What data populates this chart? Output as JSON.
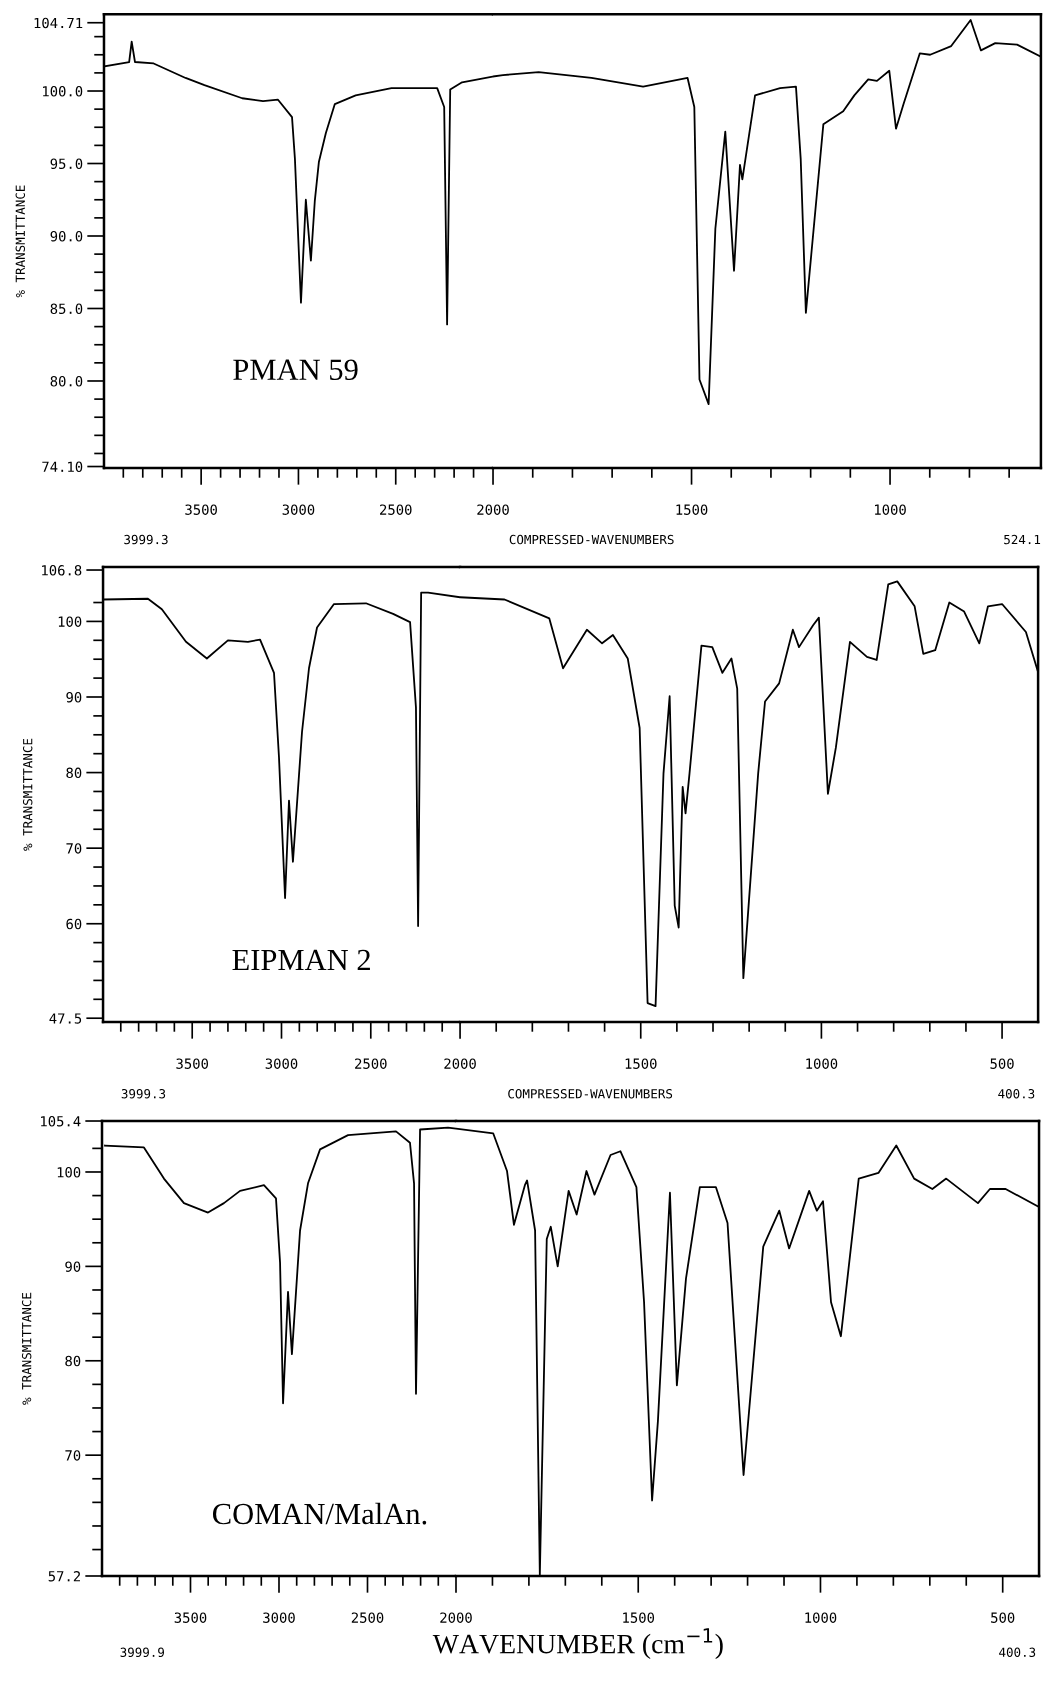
{
  "chart_data": [
    {
      "type": "line",
      "ylabel": "% TRANSMITTANCE",
      "annotations": [
        "PMAN 59",
        "3999.3"
      ],
      "xlim": [
        3999.3,
        2000
      ],
      "ylim": [
        74.0,
        105.3
      ],
      "xticks": [
        {
          "value": 3900,
          "label": null
        },
        {
          "value": 3800,
          "label": null
        },
        {
          "value": 3700,
          "label": null
        },
        {
          "value": 3600,
          "label": null
        },
        3500,
        {
          "value": 3400,
          "label": null
        },
        {
          "value": 3300,
          "label": null
        },
        {
          "value": 3200,
          "label": null
        },
        {
          "value": 3100,
          "label": null
        },
        3000,
        {
          "value": 2900,
          "label": null
        },
        {
          "value": 2800,
          "label": null
        },
        {
          "value": 2700,
          "label": null
        },
        {
          "value": 2600,
          "label": null
        },
        2500,
        {
          "value": 2400,
          "label": null
        },
        {
          "value": 2300,
          "label": null
        },
        {
          "value": 2200,
          "label": null
        },
        {
          "value": 2100,
          "label": null
        },
        2000
      ],
      "yticks": [
        {
          "value": 104.71,
          "label": "104.71"
        },
        {
          "value": 103.75,
          "label": null
        },
        {
          "value": 102.5,
          "label": null
        },
        {
          "value": 101.25,
          "label": null
        },
        {
          "value": 100,
          "label": "100.0"
        },
        {
          "value": 98.75,
          "label": null
        },
        {
          "value": 97.5,
          "label": null
        },
        {
          "value": 96.25,
          "label": null
        },
        {
          "value": 95,
          "label": "95.0"
        },
        {
          "value": 93.75,
          "label": null
        },
        {
          "value": 92.5,
          "label": null
        },
        {
          "value": 91.25,
          "label": null
        },
        {
          "value": 90,
          "label": "90.0"
        },
        {
          "value": 88.75,
          "label": null
        },
        {
          "value": 87.5,
          "label": null
        },
        {
          "value": 86.25,
          "label": null
        },
        {
          "value": 85,
          "label": "85.0"
        },
        {
          "value": 83.75,
          "label": null
        },
        {
          "value": 82.5,
          "label": null
        },
        {
          "value": 81.25,
          "label": null
        },
        {
          "value": 80,
          "label": "80.0"
        },
        {
          "value": 78.75,
          "label": null
        },
        {
          "value": 77.5,
          "label": null
        },
        {
          "value": 76.25,
          "label": null
        },
        {
          "value": 75,
          "label": null
        },
        {
          "value": 74.1,
          "label": "74.10"
        }
      ],
      "series": [
        {
          "color": "#000000",
          "x": [
            3999,
            3870,
            3857,
            3840,
            3744,
            3580,
            3483,
            3289,
            3182,
            3105,
            3033,
            3018,
            2987,
            2962,
            2936,
            2916,
            2895,
            2859,
            2813,
            2706,
            2522,
            2287,
            2251,
            2236,
            2220,
            2159,
            2000
          ],
          "values": [
            101.7,
            102.0,
            103.4,
            102.0,
            101.9,
            100.9,
            100.4,
            99.5,
            99.3,
            99.4,
            98.2,
            95.3,
            85.4,
            92.5,
            88.3,
            92.4,
            95.1,
            97.1,
            99.1,
            99.7,
            100.2,
            100.2,
            98.9,
            83.9,
            100.1,
            100.6,
            101.0
          ]
        }
      ]
    },
    {
      "type": "line",
      "tick_labels": "x",
      "annotations": [
        "COMPRESSED-WAVENUMBERS",
        "524.1"
      ],
      "xlim": [
        2000,
        620
      ],
      "ylim": [
        74.0,
        105.3
      ],
      "xticks": [
        {
          "value": 1900,
          "label": null
        },
        {
          "value": 1800,
          "label": null
        },
        {
          "value": 1700,
          "label": null
        },
        {
          "value": 1600,
          "label": null
        },
        1500,
        {
          "value": 1400,
          "label": null
        },
        {
          "value": 1300,
          "label": null
        },
        {
          "value": 1200,
          "label": null
        },
        {
          "value": 1100,
          "label": null
        },
        1000,
        {
          "value": 900,
          "label": null
        },
        {
          "value": 800,
          "label": null
        },
        {
          "value": 700,
          "label": null
        }
      ],
      "series": [
        {
          "color": "#000000",
          "x": [
            2000,
            1975,
            1885,
            1752,
            1622,
            1510,
            1493,
            1480,
            1457,
            1440,
            1415,
            1393,
            1378,
            1372,
            1340,
            1277,
            1237,
            1225,
            1212,
            1168,
            1118,
            1090,
            1055,
            1033,
            1002,
            985,
            966,
            925,
            899,
            846,
            797,
            771,
            735,
            680,
            622
          ],
          "values": [
            101.0,
            101.1,
            101.3,
            100.9,
            100.3,
            100.9,
            98.9,
            80.1,
            78.4,
            90.5,
            97.2,
            87.6,
            94.9,
            93.9,
            99.7,
            100.2,
            100.3,
            95.3,
            84.7,
            97.7,
            98.6,
            99.7,
            100.8,
            100.7,
            101.4,
            97.4,
            99.1,
            102.6,
            102.5,
            103.1,
            104.9,
            102.8,
            103.3,
            103.2,
            102.4
          ]
        }
      ]
    },
    {
      "type": "line",
      "ylabel": "% TRANSMITTANCE",
      "annotations": [
        "EIPMAN 2",
        "3999.3"
      ],
      "xlim": [
        3999.3,
        2000
      ],
      "ylim": [
        47.0,
        107.2
      ],
      "xticks": [
        {
          "value": 3900,
          "label": null
        },
        {
          "value": 3800,
          "label": null
        },
        {
          "value": 3700,
          "label": null
        },
        {
          "value": 3600,
          "label": null
        },
        3500,
        {
          "value": 3400,
          "label": null
        },
        {
          "value": 3300,
          "label": null
        },
        {
          "value": 3200,
          "label": null
        },
        {
          "value": 3100,
          "label": null
        },
        3000,
        {
          "value": 2900,
          "label": null
        },
        {
          "value": 2800,
          "label": null
        },
        {
          "value": 2700,
          "label": null
        },
        {
          "value": 2600,
          "label": null
        },
        2500,
        {
          "value": 2400,
          "label": null
        },
        {
          "value": 2300,
          "label": null
        },
        {
          "value": 2200,
          "label": null
        },
        {
          "value": 2100,
          "label": null
        },
        2000
      ],
      "yticks": [
        {
          "value": 106.8,
          "label": "106.8"
        },
        {
          "value": 102.5,
          "label": null
        },
        100,
        {
          "value": 97.5,
          "label": null
        },
        {
          "value": 95,
          "label": null
        },
        {
          "value": 92.5,
          "label": null
        },
        90,
        {
          "value": 87.5,
          "label": null
        },
        {
          "value": 85,
          "label": null
        },
        {
          "value": 82.5,
          "label": null
        },
        80,
        {
          "value": 77.5,
          "label": null
        },
        {
          "value": 75,
          "label": null
        },
        {
          "value": 72.5,
          "label": null
        },
        70,
        {
          "value": 67.5,
          "label": null
        },
        {
          "value": 65,
          "label": null
        },
        {
          "value": 62.5,
          "label": null
        },
        60,
        {
          "value": 57.5,
          "label": null
        },
        {
          "value": 55,
          "label": null
        },
        {
          "value": 52.5,
          "label": null
        },
        {
          "value": 50,
          "label": null
        },
        47.5
      ],
      "series": [
        {
          "color": "#000000",
          "x": [
            3999,
            3748,
            3670,
            3535,
            3418,
            3300,
            3188,
            3120,
            3042,
            3014,
            2980,
            2958,
            2936,
            2885,
            2846,
            2801,
            2706,
            2527,
            2375,
            2280,
            2247,
            2235,
            2218,
            2179,
            2000
          ],
          "values": [
            102.9,
            103.0,
            101.6,
            97.3,
            95.1,
            97.5,
            97.3,
            97.6,
            93.2,
            82.0,
            63.4,
            76.3,
            68.2,
            85.4,
            93.8,
            99.2,
            102.3,
            102.4,
            101.0,
            99.9,
            88.6,
            59.7,
            103.8,
            103.8,
            103.2
          ]
        }
      ]
    },
    {
      "type": "line",
      "tick_labels": "x",
      "annotations": [
        "COMPRESSED-WAVENUMBERS",
        "400.3"
      ],
      "xlim": [
        2000,
        400.3
      ],
      "ylim": [
        47.0,
        107.2
      ],
      "xticks": [
        {
          "value": 1900,
          "label": null
        },
        {
          "value": 1800,
          "label": null
        },
        {
          "value": 1700,
          "label": null
        },
        {
          "value": 1600,
          "label": null
        },
        1500,
        {
          "value": 1400,
          "label": null
        },
        {
          "value": 1300,
          "label": null
        },
        {
          "value": 1200,
          "label": null
        },
        {
          "value": 1100,
          "label": null
        },
        1000,
        {
          "value": 900,
          "label": null
        },
        {
          "value": 800,
          "label": null
        },
        {
          "value": 700,
          "label": null
        },
        {
          "value": 600,
          "label": null
        },
        500
      ],
      "series": [
        {
          "color": "#000000",
          "x": [
            2000,
            1877,
            1753,
            1715,
            1649,
            1607,
            1577,
            1536,
            1503,
            1481,
            1459,
            1437,
            1420,
            1406,
            1395,
            1384,
            1376,
            1365,
            1332,
            1302,
            1274,
            1249,
            1233,
            1216,
            1175,
            1156,
            1117,
            1079,
            1062,
            1023,
            1007,
            982,
            960,
            921,
            874,
            847,
            815,
            790,
            742,
            718,
            685,
            646,
            605,
            563,
            539,
            500,
            434,
            401
          ],
          "values": [
            103.2,
            102.9,
            100.4,
            93.8,
            98.9,
            97.1,
            98.2,
            95.1,
            85.9,
            49.5,
            49.1,
            79.9,
            90.1,
            62.4,
            59.5,
            78.1,
            74.6,
            79.9,
            96.8,
            96.6,
            93.2,
            95.1,
            91.1,
            52.8,
            79.9,
            89.4,
            91.8,
            98.9,
            96.6,
            99.5,
            100.5,
            77.2,
            83.3,
            97.3,
            95.3,
            94.9,
            104.9,
            105.3,
            102.0,
            95.7,
            96.2,
            102.5,
            101.3,
            97.1,
            102.0,
            102.3,
            98.6,
            93.4
          ]
        }
      ]
    },
    {
      "type": "line",
      "ylabel": "% TRANSMITTANCE",
      "annotations": [
        "COMAN/MalAn.",
        "3999.9"
      ],
      "xlim": [
        3999.9,
        2000
      ],
      "ylim": [
        57.2,
        105.4
      ],
      "xticks": [
        {
          "value": 3900,
          "label": null
        },
        {
          "value": 3800,
          "label": null
        },
        {
          "value": 3700,
          "label": null
        },
        {
          "value": 3600,
          "label": null
        },
        3500,
        {
          "value": 3400,
          "label": null
        },
        {
          "value": 3300,
          "label": null
        },
        {
          "value": 3200,
          "label": null
        },
        {
          "value": 3100,
          "label": null
        },
        3000,
        {
          "value": 2900,
          "label": null
        },
        {
          "value": 2800,
          "label": null
        },
        {
          "value": 2700,
          "label": null
        },
        {
          "value": 2600,
          "label": null
        },
        2500,
        {
          "value": 2400,
          "label": null
        },
        {
          "value": 2300,
          "label": null
        },
        {
          "value": 2200,
          "label": null
        },
        {
          "value": 2100,
          "label": null
        },
        2000
      ],
      "yticks": [
        105.4,
        {
          "value": 102.5,
          "label": null
        },
        100,
        {
          "value": 97.5,
          "label": null
        },
        {
          "value": 95,
          "label": null
        },
        {
          "value": 92.5,
          "label": null
        },
        90,
        {
          "value": 87.5,
          "label": null
        },
        {
          "value": 85,
          "label": null
        },
        {
          "value": 82.5,
          "label": null
        },
        80,
        {
          "value": 77.5,
          "label": null
        },
        {
          "value": 75,
          "label": null
        },
        {
          "value": 72.5,
          "label": null
        },
        70,
        {
          "value": 67.5,
          "label": null
        },
        {
          "value": 65,
          "label": null
        },
        {
          "value": 62.5,
          "label": null
        },
        {
          "value": 60,
          "label": null
        },
        57.2
      ],
      "series": [
        {
          "color": "#000000",
          "x": [
            3983,
            3763,
            3650,
            3537,
            3401,
            3311,
            3220,
            3085,
            3017,
            2994,
            2977,
            2949,
            2927,
            2881,
            2836,
            2768,
            2610,
            2339,
            2260,
            2237,
            2226,
            2203,
            2045,
            2000
          ],
          "values": [
            102.8,
            102.6,
            99.3,
            96.7,
            95.7,
            96.7,
            98.0,
            98.6,
            97.2,
            90.4,
            75.5,
            87.3,
            80.7,
            93.8,
            98.8,
            102.4,
            103.9,
            104.3,
            103.1,
            98.8,
            76.5,
            104.5,
            104.7,
            104.6
          ]
        }
      ]
    },
    {
      "type": "line",
      "tick_labels": "x",
      "xlabel": "WAVENUMBER (cm$^{−1}$)",
      "annotations": [
        "400.3"
      ],
      "xlim": [
        2000,
        400.3
      ],
      "ylim": [
        57.2,
        105.4
      ],
      "xticks": [
        {
          "value": 1900,
          "label": null
        },
        {
          "value": 1800,
          "label": null
        },
        {
          "value": 1700,
          "label": null
        },
        {
          "value": 1600,
          "label": null
        },
        1500,
        {
          "value": 1400,
          "label": null
        },
        {
          "value": 1300,
          "label": null
        },
        {
          "value": 1200,
          "label": null
        },
        {
          "value": 1100,
          "label": null
        },
        1000,
        {
          "value": 900,
          "label": null
        },
        {
          "value": 800,
          "label": null
        },
        {
          "value": 700,
          "label": null
        },
        {
          "value": 600,
          "label": null
        },
        500
      ],
      "series": [
        {
          "color": "#000000",
          "x": [
            2000,
            1898,
            1860,
            1841,
            1811,
            1805,
            1783,
            1770,
            1751,
            1740,
            1721,
            1691,
            1669,
            1642,
            1620,
            1576,
            1549,
            1505,
            1484,
            1462,
            1446,
            1413,
            1394,
            1369,
            1331,
            1287,
            1255,
            1211,
            1157,
            1113,
            1086,
            1031,
            1010,
            993,
            971,
            944,
            895,
            841,
            792,
            743,
            693,
            655,
            568,
            535,
            492,
            401
          ],
          "values": [
            104.6,
            104.1,
            100.1,
            94.4,
            98.6,
            99.1,
            93.8,
            57.3,
            92.9,
            94.2,
            90.0,
            98.0,
            95.5,
            100.1,
            97.6,
            101.8,
            102.2,
            98.4,
            86.2,
            65.2,
            73.6,
            97.8,
            77.4,
            88.7,
            98.4,
            98.4,
            94.6,
            67.9,
            92.1,
            95.9,
            91.9,
            98.0,
            95.9,
            96.9,
            86.2,
            82.6,
            99.3,
            99.9,
            102.8,
            99.3,
            98.2,
            99.3,
            96.7,
            98.2,
            98.2,
            96.3
          ]
        }
      ]
    }
  ]
}
